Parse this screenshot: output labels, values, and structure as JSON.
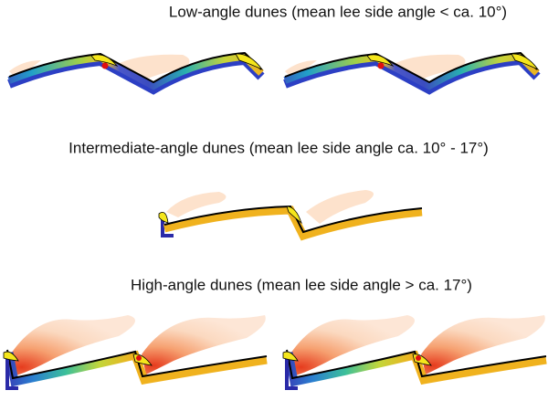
{
  "sections": [
    {
      "title": "Low-angle dunes (mean lee side angle < ca. 10°)"
    },
    {
      "title": "Intermediate-angle dunes (mean lee side angle ca. 10° - 17°)"
    },
    {
      "title": "High-angle dunes (mean lee side angle > ca. 17°)"
    }
  ]
}
